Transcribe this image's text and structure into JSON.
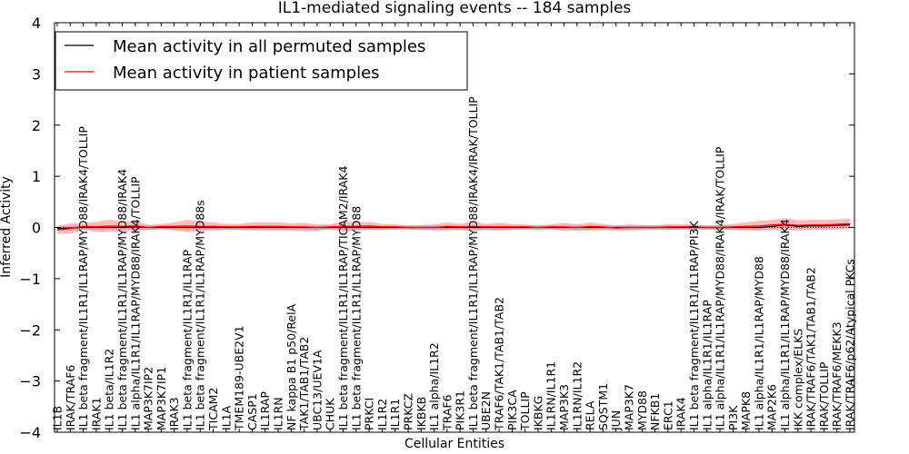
{
  "chart_data": {
    "type": "line",
    "title": "IL1-mediated signaling events -- 184 samples",
    "xlabel": "Cellular Entities",
    "ylabel": "Inferred Activity",
    "ylim": [
      -4,
      4
    ],
    "yticks": [
      "4",
      "3",
      "2",
      "1",
      "0",
      "−1",
      "−2",
      "−3",
      "−4"
    ],
    "grid": false,
    "legend_position": "top-left",
    "categories": [
      "IL1B",
      "IRAK/TRAF6",
      "IL1 beta fragment/IL1R1/IL1RAP/MYD88/IRAK4/TOLLIP",
      "IRAK1",
      "IL1 beta/IL1R2",
      "IL1 beta fragment/IL1R1/IL1RAP/MYD88/IRAK4",
      "IL1 alpha/IL1R1/IL1RAP/MYD88/IRAK4/TOLLIP",
      "MAP3K7IP2",
      "MAP3K7IP1",
      "IRAK3",
      "IL1 beta fragment/IL1R1/IL1RAP",
      "IL1 beta fragment/IL1R1/IL1RAP/MYD88s",
      "TICAM2",
      "IL1A",
      "TMEM189-UBE2V1",
      "CASP1",
      "IL1RAP",
      "IL1RN",
      "NF kappa B1 p50/RelA",
      "TAK1/TAB1/TAB2",
      "UBC13/UEV1A",
      "CHUK",
      "IL1 beta fragment/IL1R1/IL1RAP/TICAM2/IRAK4",
      "IL1 beta fragment/IL1R1/IL1RAP/MYD88",
      "PRKCI",
      "IL1R2",
      "IL1R1",
      "PRKCZ",
      "IKBKB",
      "IL1 alpha/IL1R2",
      "TRAF6",
      "PIK3R1",
      "IL1 beta fragment/IL1R1/IL1RAP/MYD88/IRAK4/IRAK/TOLLIP",
      "UBE2N",
      "TRAF6/TAK1/TAB1/TAB2",
      "PIK3CA",
      "TOLLIP",
      "IKBKG",
      "IL1RN/IL1R1",
      "MAP3K3",
      "IL1RN/IL1R2",
      "RELA",
      "SQSTM1",
      "JUN",
      "MAP3K7",
      "MYD88",
      "NFKB1",
      "ERC1",
      "IRAK4",
      "IL1 beta fragment/IL1R1/IL1RAP/PI3K",
      "IL1 alpha/IL1R1/IL1RAP",
      "IL1 alpha/IL1R1/IL1RAP/MYD88/IRAK4/IRAK/TOLLIP",
      "PI3K",
      "MAPK8",
      "IL1 alpha/IL1R1/IL1RAP/MYD88",
      "MAP2K6",
      "IL1 alpha/IL1R1/IL1RAP/MYD88/IRAK4",
      "IKK complex/ELKS",
      "IRAK/TRAF6/TAK1/TAB1/TAB2",
      "IRAK/TOLLIP",
      "IRAK/TRAF6/MEKK3",
      "IRAK/TRAF6/p62/Atypical PKCs"
    ],
    "series": [
      {
        "name": "Mean activity in all permuted samples",
        "color": "#000000",
        "values": [
          -0.02,
          -0.01,
          0.0,
          0.0,
          0.0,
          0.0,
          0.01,
          0.0,
          0.0,
          0.0,
          0.0,
          0.0,
          0.0,
          0.0,
          0.0,
          0.0,
          0.0,
          0.0,
          0.0,
          0.0,
          0.0,
          0.0,
          0.0,
          0.0,
          0.0,
          0.0,
          0.0,
          0.0,
          0.0,
          0.0,
          0.0,
          0.0,
          0.0,
          0.0,
          0.0,
          0.0,
          0.0,
          0.0,
          0.0,
          0.0,
          0.0,
          0.0,
          0.0,
          0.0,
          0.0,
          0.0,
          0.0,
          0.0,
          0.0,
          0.0,
          0.0,
          0.0,
          0.0,
          0.0,
          0.0,
          0.02,
          0.05,
          0.02,
          0.03,
          0.03,
          0.04,
          0.05
        ]
      },
      {
        "name": "Mean activity in patient samples",
        "color": "#ff0000",
        "values": [
          -0.05,
          -0.02,
          0.02,
          0.01,
          0.03,
          0.02,
          0.03,
          0.0,
          0.02,
          0.02,
          0.03,
          0.02,
          0.02,
          0.01,
          0.01,
          0.02,
          0.02,
          0.02,
          0.01,
          0.01,
          0.0,
          0.01,
          0.02,
          0.02,
          0.03,
          0.01,
          0.01,
          0.0,
          0.0,
          0.0,
          0.02,
          0.01,
          0.02,
          0.01,
          0.01,
          0.01,
          0.01,
          0.0,
          0.01,
          0.01,
          0.0,
          0.02,
          0.01,
          -0.01,
          0.0,
          0.0,
          0.0,
          0.01,
          0.01,
          0.01,
          0.0,
          0.0,
          0.01,
          0.02,
          0.03,
          0.05,
          0.06,
          0.04,
          0.05,
          0.05,
          0.06,
          0.07
        ]
      }
    ],
    "band_halfwidth": [
      0.08,
      0.1,
      0.06,
      0.1,
      0.12,
      0.1,
      0.1,
      0.05,
      0.05,
      0.08,
      0.12,
      0.1,
      0.08,
      0.06,
      0.06,
      0.08,
      0.08,
      0.08,
      0.07,
      0.08,
      0.06,
      0.05,
      0.1,
      0.08,
      0.08,
      0.06,
      0.05,
      0.04,
      0.05,
      0.06,
      0.08,
      0.06,
      0.1,
      0.06,
      0.08,
      0.06,
      0.05,
      0.04,
      0.05,
      0.08,
      0.06,
      0.08,
      0.06,
      0.05,
      0.06,
      0.05,
      0.04,
      0.06,
      0.05,
      0.05,
      0.04,
      0.05,
      0.06,
      0.08,
      0.1,
      0.1,
      0.12,
      0.1,
      0.1,
      0.1,
      0.1,
      0.1
    ]
  }
}
